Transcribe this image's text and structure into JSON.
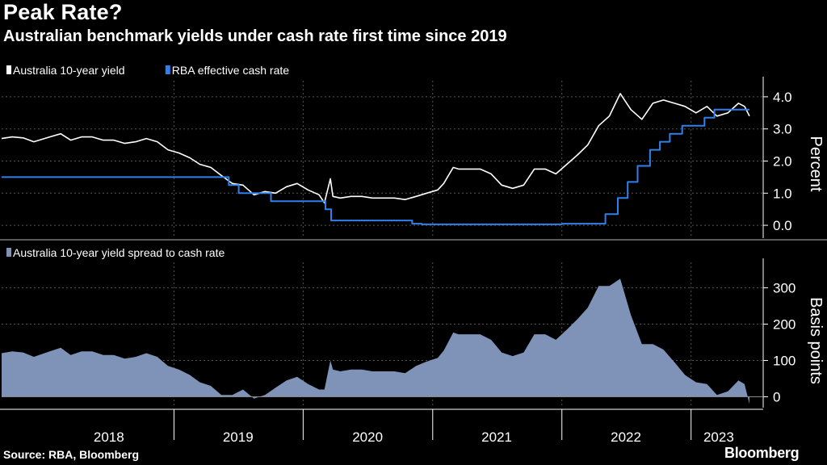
{
  "header": {
    "title": "Peak Rate?",
    "subtitle": "Australian benchmark yields under cash rate first time since 2019"
  },
  "footer": {
    "source": "Source: RBA, Bloomberg",
    "brand": "Bloomberg"
  },
  "colors": {
    "background": "#000000",
    "yield_line": "#ffffff",
    "cash_rate_line": "#2f80ed",
    "spread_area": "#7f93b8",
    "grid": "#555555"
  },
  "chart_data": [
    {
      "type": "line",
      "ylabel": "Percent",
      "ylim": [
        -0.4,
        4.5
      ],
      "yticks": [
        "0.0",
        "1.0",
        "2.0",
        "3.0",
        "4.0"
      ],
      "grid": true,
      "legend_position": "top-left",
      "series": [
        {
          "name": "Australia 10-year yield",
          "color": "#ffffff",
          "points": [
            [
              "2017-09-01",
              2.7
            ],
            [
              "2017-10-01",
              2.75
            ],
            [
              "2017-11-01",
              2.72
            ],
            [
              "2017-12-01",
              2.6
            ],
            [
              "2018-01-15",
              2.75
            ],
            [
              "2018-02-15",
              2.85
            ],
            [
              "2018-03-15",
              2.65
            ],
            [
              "2018-04-15",
              2.75
            ],
            [
              "2018-05-15",
              2.75
            ],
            [
              "2018-06-15",
              2.65
            ],
            [
              "2018-07-15",
              2.65
            ],
            [
              "2018-08-15",
              2.55
            ],
            [
              "2018-09-15",
              2.6
            ],
            [
              "2018-10-15",
              2.7
            ],
            [
              "2018-11-15",
              2.6
            ],
            [
              "2018-12-15",
              2.35
            ],
            [
              "2019-01-15",
              2.25
            ],
            [
              "2019-02-15",
              2.1
            ],
            [
              "2019-03-15",
              1.9
            ],
            [
              "2019-04-15",
              1.8
            ],
            [
              "2019-05-15",
              1.55
            ],
            [
              "2019-06-15",
              1.3
            ],
            [
              "2019-07-15",
              1.25
            ],
            [
              "2019-08-15",
              0.95
            ],
            [
              "2019-09-15",
              1.05
            ],
            [
              "2019-10-15",
              1.0
            ],
            [
              "2019-11-15",
              1.2
            ],
            [
              "2019-12-15",
              1.3
            ],
            [
              "2020-01-15",
              1.1
            ],
            [
              "2020-02-15",
              0.95
            ],
            [
              "2020-03-01",
              0.7
            ],
            [
              "2020-03-18",
              1.45
            ],
            [
              "2020-03-25",
              0.9
            ],
            [
              "2020-04-15",
              0.85
            ],
            [
              "2020-05-15",
              0.9
            ],
            [
              "2020-06-15",
              0.9
            ],
            [
              "2020-07-15",
              0.85
            ],
            [
              "2020-08-15",
              0.85
            ],
            [
              "2020-09-15",
              0.85
            ],
            [
              "2020-10-15",
              0.8
            ],
            [
              "2020-11-15",
              0.9
            ],
            [
              "2020-12-15",
              1.0
            ],
            [
              "2021-01-15",
              1.1
            ],
            [
              "2021-02-01",
              1.3
            ],
            [
              "2021-02-28",
              1.8
            ],
            [
              "2021-03-15",
              1.75
            ],
            [
              "2021-04-15",
              1.75
            ],
            [
              "2021-05-15",
              1.75
            ],
            [
              "2021-06-15",
              1.6
            ],
            [
              "2021-07-15",
              1.25
            ],
            [
              "2021-08-15",
              1.15
            ],
            [
              "2021-09-15",
              1.25
            ],
            [
              "2021-10-15",
              1.75
            ],
            [
              "2021-11-15",
              1.75
            ],
            [
              "2021-12-15",
              1.6
            ],
            [
              "2022-01-15",
              1.9
            ],
            [
              "2022-02-15",
              2.2
            ],
            [
              "2022-03-15",
              2.5
            ],
            [
              "2022-04-15",
              3.1
            ],
            [
              "2022-05-15",
              3.4
            ],
            [
              "2022-06-15",
              4.1
            ],
            [
              "2022-07-15",
              3.6
            ],
            [
              "2022-08-15",
              3.3
            ],
            [
              "2022-09-15",
              3.8
            ],
            [
              "2022-10-15",
              3.9
            ],
            [
              "2022-11-15",
              3.8
            ],
            [
              "2022-12-15",
              3.7
            ],
            [
              "2023-01-15",
              3.5
            ],
            [
              "2023-02-15",
              3.7
            ],
            [
              "2023-03-15",
              3.4
            ],
            [
              "2023-04-15",
              3.5
            ],
            [
              "2023-05-15",
              3.8
            ],
            [
              "2023-06-01",
              3.7
            ],
            [
              "2023-06-15",
              3.4
            ]
          ]
        },
        {
          "name": "RBA effective cash rate",
          "color": "#2f80ed",
          "step": true,
          "points": [
            [
              "2017-09-01",
              1.5
            ],
            [
              "2019-06-05",
              1.25
            ],
            [
              "2019-07-03",
              1.0
            ],
            [
              "2019-10-02",
              0.75
            ],
            [
              "2020-03-04",
              0.5
            ],
            [
              "2020-03-20",
              0.15
            ],
            [
              "2020-11-04",
              0.05
            ],
            [
              "2020-12-01",
              0.03
            ],
            [
              "2022-01-01",
              0.05
            ],
            [
              "2022-05-04",
              0.35
            ],
            [
              "2022-06-08",
              0.85
            ],
            [
              "2022-07-06",
              1.35
            ],
            [
              "2022-08-03",
              1.85
            ],
            [
              "2022-09-07",
              2.35
            ],
            [
              "2022-10-05",
              2.6
            ],
            [
              "2022-11-02",
              2.85
            ],
            [
              "2022-12-07",
              3.1
            ],
            [
              "2023-02-08",
              3.35
            ],
            [
              "2023-03-08",
              3.6
            ],
            [
              "2023-06-15",
              3.6
            ]
          ]
        }
      ]
    },
    {
      "type": "area",
      "ylabel": "Basis points",
      "ylim": [
        -30,
        370
      ],
      "yticks": [
        "0",
        "100",
        "200",
        "300"
      ],
      "grid": true,
      "legend_position": "top-left",
      "series": [
        {
          "name": "Australia 10-year yield spread to cash rate",
          "color": "#7f93b8",
          "points": [
            [
              "2017-09-01",
              120
            ],
            [
              "2017-10-01",
              125
            ],
            [
              "2017-11-01",
              122
            ],
            [
              "2017-12-01",
              110
            ],
            [
              "2018-01-15",
              125
            ],
            [
              "2018-02-15",
              135
            ],
            [
              "2018-03-15",
              115
            ],
            [
              "2018-04-15",
              125
            ],
            [
              "2018-05-15",
              125
            ],
            [
              "2018-06-15",
              115
            ],
            [
              "2018-07-15",
              115
            ],
            [
              "2018-08-15",
              105
            ],
            [
              "2018-09-15",
              110
            ],
            [
              "2018-10-15",
              120
            ],
            [
              "2018-11-15",
              110
            ],
            [
              "2018-12-15",
              85
            ],
            [
              "2019-01-15",
              75
            ],
            [
              "2019-02-15",
              60
            ],
            [
              "2019-03-15",
              40
            ],
            [
              "2019-04-15",
              30
            ],
            [
              "2019-05-15",
              5
            ],
            [
              "2019-06-15",
              5
            ],
            [
              "2019-07-15",
              20
            ],
            [
              "2019-08-15",
              -5
            ],
            [
              "2019-09-15",
              5
            ],
            [
              "2019-10-15",
              25
            ],
            [
              "2019-11-15",
              45
            ],
            [
              "2019-12-15",
              55
            ],
            [
              "2020-01-15",
              35
            ],
            [
              "2020-02-15",
              20
            ],
            [
              "2020-03-01",
              20
            ],
            [
              "2020-03-18",
              100
            ],
            [
              "2020-03-25",
              75
            ],
            [
              "2020-04-15",
              70
            ],
            [
              "2020-05-15",
              75
            ],
            [
              "2020-06-15",
              75
            ],
            [
              "2020-07-15",
              70
            ],
            [
              "2020-08-15",
              70
            ],
            [
              "2020-09-15",
              70
            ],
            [
              "2020-10-15",
              65
            ],
            [
              "2020-11-15",
              85
            ],
            [
              "2020-12-15",
              97
            ],
            [
              "2021-01-15",
              107
            ],
            [
              "2021-02-01",
              127
            ],
            [
              "2021-02-28",
              177
            ],
            [
              "2021-03-15",
              172
            ],
            [
              "2021-04-15",
              172
            ],
            [
              "2021-05-15",
              172
            ],
            [
              "2021-06-15",
              157
            ],
            [
              "2021-07-15",
              122
            ],
            [
              "2021-08-15",
              112
            ],
            [
              "2021-09-15",
              122
            ],
            [
              "2021-10-15",
              172
            ],
            [
              "2021-11-15",
              172
            ],
            [
              "2021-12-15",
              157
            ],
            [
              "2022-01-15",
              185
            ],
            [
              "2022-02-15",
              215
            ],
            [
              "2022-03-15",
              245
            ],
            [
              "2022-04-15",
              305
            ],
            [
              "2022-05-15",
              305
            ],
            [
              "2022-06-15",
              325
            ],
            [
              "2022-07-15",
              225
            ],
            [
              "2022-08-15",
              145
            ],
            [
              "2022-09-15",
              145
            ],
            [
              "2022-10-15",
              130
            ],
            [
              "2022-11-15",
              95
            ],
            [
              "2022-12-15",
              60
            ],
            [
              "2023-01-15",
              40
            ],
            [
              "2023-02-15",
              35
            ],
            [
              "2023-03-15",
              5
            ],
            [
              "2023-04-15",
              15
            ],
            [
              "2023-05-15",
              45
            ],
            [
              "2023-06-01",
              35
            ],
            [
              "2023-06-15",
              -20
            ]
          ]
        }
      ]
    }
  ],
  "x_axis": {
    "start": "2017-09-01",
    "end": "2023-06-15",
    "labels": [
      {
        "year": "2018",
        "mid": "2018-07-01"
      },
      {
        "year": "2019",
        "mid": "2019-07-01"
      },
      {
        "year": "2020",
        "mid": "2020-07-01"
      },
      {
        "year": "2021",
        "mid": "2021-07-01"
      },
      {
        "year": "2022",
        "mid": "2022-07-01"
      },
      {
        "year": "2023",
        "mid": "2023-03-20"
      }
    ],
    "boundaries": [
      "2019-01-01",
      "2020-01-01",
      "2021-01-01",
      "2022-01-01",
      "2023-01-01"
    ]
  }
}
